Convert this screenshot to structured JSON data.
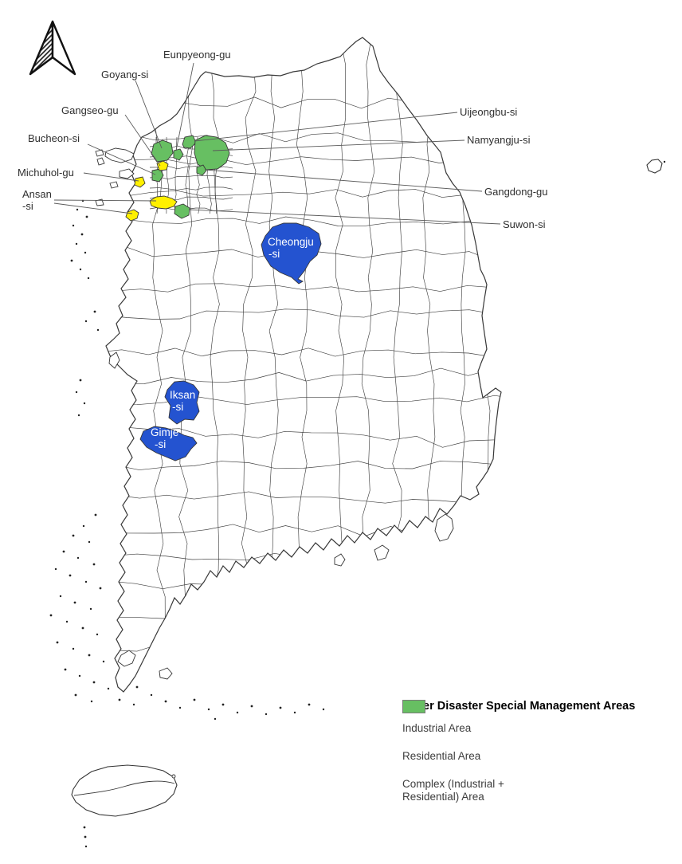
{
  "map": {
    "callouts": {
      "eunpyeong": {
        "label": "Eunpyeong-gu"
      },
      "goyang": {
        "label": "Goyang-si"
      },
      "gangseo": {
        "label": "Gangseo-gu"
      },
      "bucheon": {
        "label": "Bucheon-si"
      },
      "michuhol": {
        "label": "Michuhol-gu"
      },
      "ansan": {
        "line1": "Ansan",
        "line2": "-si"
      },
      "uijeongbu": {
        "label": "Uijeongbu-si"
      },
      "namyangju": {
        "label": "Namyangju-si"
      },
      "gangdong": {
        "label": "Gangdong-gu"
      },
      "suwon": {
        "label": "Suwon-si"
      }
    },
    "region_labels": {
      "cheongju": {
        "line1": "Cheongju",
        "line2": "-si"
      },
      "iksan": {
        "line1": "Iksan",
        "line2": "-si"
      },
      "gimje": {
        "line1": "Gimje",
        "line2": "-si"
      }
    }
  },
  "legend": {
    "title": "Water Disaster Special Management Areas",
    "items": [
      {
        "id": "industrial",
        "label": "Industrial Area",
        "color": "#2453d0"
      },
      {
        "id": "residential",
        "label": "Residential Area",
        "color": "#fff000"
      },
      {
        "id": "complex",
        "label": "Complex (Industrial + Residential) Area",
        "color": "#67bf62"
      }
    ]
  },
  "colors": {
    "industrial": "#2453d0",
    "residential": "#fff000",
    "complex": "#67bf62",
    "map_outline": "#383838",
    "leader_line": "#5a5a5a",
    "label_text": "#2f2f2f",
    "region_label_text": "#ffffff"
  },
  "icons": {
    "north_arrow": "north-arrow-icon"
  }
}
